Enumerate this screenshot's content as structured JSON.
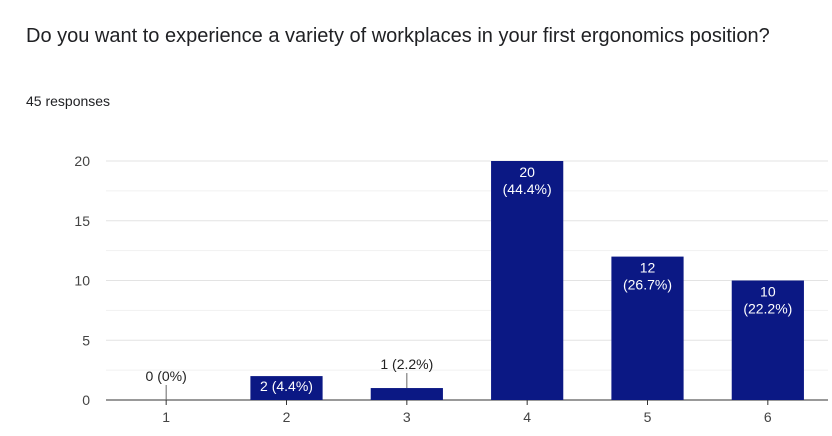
{
  "question": {
    "title": "Do you want to experience a variety of workplaces in your first ergonomics position?"
  },
  "responses": {
    "count_label": "45 responses"
  },
  "chart_data": {
    "type": "bar",
    "categories": [
      "1",
      "2",
      "3",
      "4",
      "5",
      "6"
    ],
    "values": [
      0,
      2,
      1,
      20,
      12,
      10
    ],
    "data_labels": [
      "0 (0%)",
      "2 (4.4%)",
      "1 (2.2%)",
      "20\n(44.4%)",
      "12\n(26.7%)",
      "10\n(22.2%)"
    ],
    "yticks": [
      0,
      5,
      10,
      15,
      20
    ],
    "ylim": [
      0,
      20
    ],
    "title": "",
    "xlabel": "",
    "ylabel": "",
    "grid": true,
    "colors": {
      "bar": "#0b1884",
      "grid": "#e6e6e6",
      "axis": "#333333"
    }
  }
}
